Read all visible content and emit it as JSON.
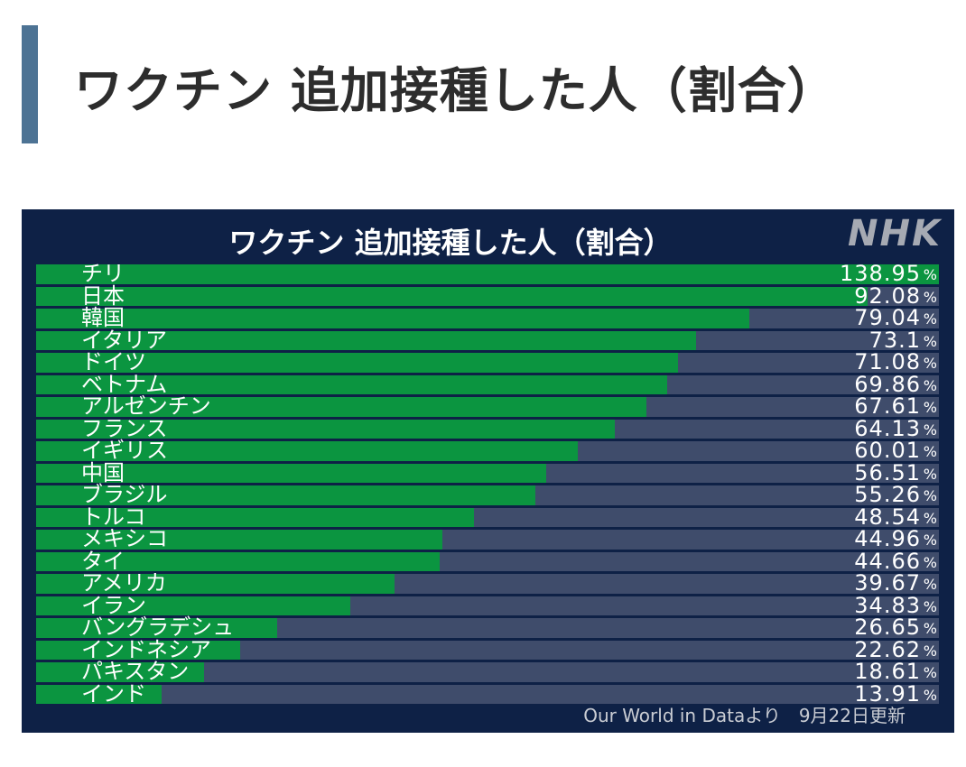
{
  "heading": {
    "title": "ワクチン 追加接種した人（割合）"
  },
  "panel": {
    "title": "ワクチン 追加接種した人（割合）",
    "logo": "NHK",
    "source": "Our World in Dataより　9月22日更新",
    "percent_sign": "%"
  },
  "chart_data": {
    "type": "bar",
    "orientation": "horizontal",
    "title": "ワクチン 追加接種した人（割合）",
    "unit": "%",
    "categories": [
      "チリ",
      "日本",
      "韓国",
      "イタリア",
      "ドイツ",
      "ベトナム",
      "アルゼンチン",
      "フランス",
      "イギリス",
      "中国",
      "ブラジル",
      "トルコ",
      "メキシコ",
      "タイ",
      "アメリカ",
      "イラン",
      "バングラデシュ",
      "インドネシア",
      "パキスタン",
      "インド"
    ],
    "values": [
      138.95,
      92.08,
      79.04,
      73.1,
      71.08,
      69.86,
      67.61,
      64.13,
      60.01,
      56.51,
      55.26,
      48.54,
      44.96,
      44.66,
      39.67,
      34.83,
      26.65,
      22.62,
      18.61,
      13.91
    ],
    "value_labels": [
      "138.95",
      "92.08",
      "79.04",
      "73.1",
      "71.08",
      "69.86",
      "67.61",
      "64.13",
      "60.01",
      "56.51",
      "55.26",
      "48.54",
      "44.96",
      "44.66",
      "39.67",
      "34.83",
      "26.65",
      "22.62",
      "18.61",
      "13.91"
    ],
    "xlim": [
      0,
      100
    ],
    "colors": {
      "bar": "#0b9540",
      "track": "#3f4c6b",
      "background": "#0e2146"
    }
  }
}
